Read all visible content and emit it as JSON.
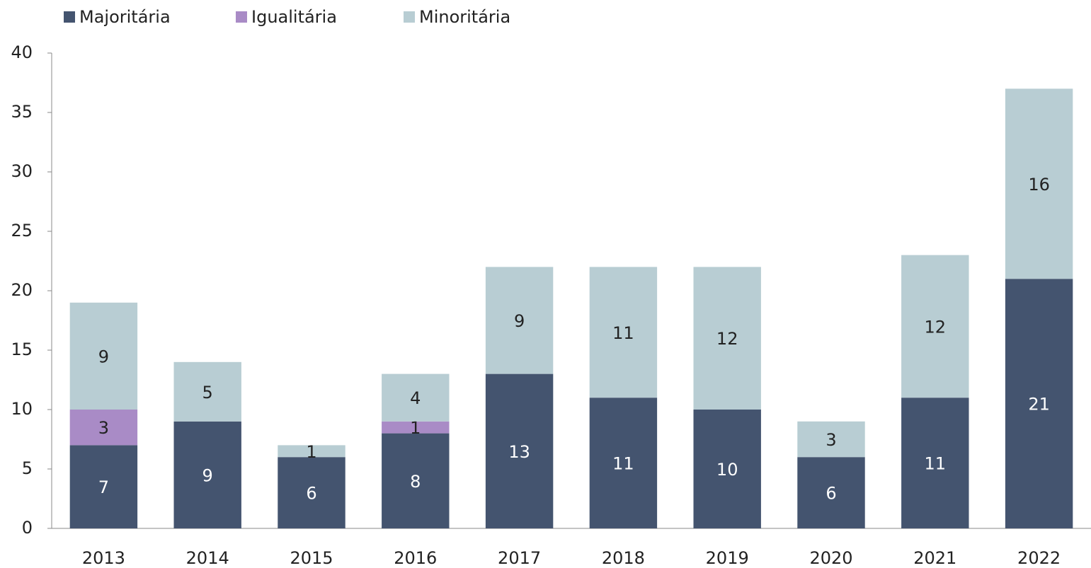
{
  "chart_data": {
    "type": "stacked_bar",
    "categories": [
      "2013",
      "2014",
      "2015",
      "2016",
      "2017",
      "2018",
      "2019",
      "2020",
      "2021",
      "2022"
    ],
    "series": [
      {
        "name": "Majoritária",
        "color": "#44546f",
        "values": [
          7,
          9,
          6,
          8,
          13,
          11,
          10,
          6,
          11,
          21
        ]
      },
      {
        "name": "Igualitária",
        "color": "#a98bc6",
        "values": [
          3,
          null,
          null,
          1,
          null,
          null,
          null,
          null,
          null,
          null
        ]
      },
      {
        "name": "Minoritária",
        "color": "#b8cdd3",
        "values": [
          9,
          5,
          1,
          4,
          9,
          11,
          12,
          3,
          12,
          16
        ]
      }
    ],
    "ylim": [
      0,
      40
    ],
    "yticks": [
      0,
      5,
      10,
      15,
      20,
      25,
      30,
      35,
      40
    ],
    "legend": "top-left"
  }
}
